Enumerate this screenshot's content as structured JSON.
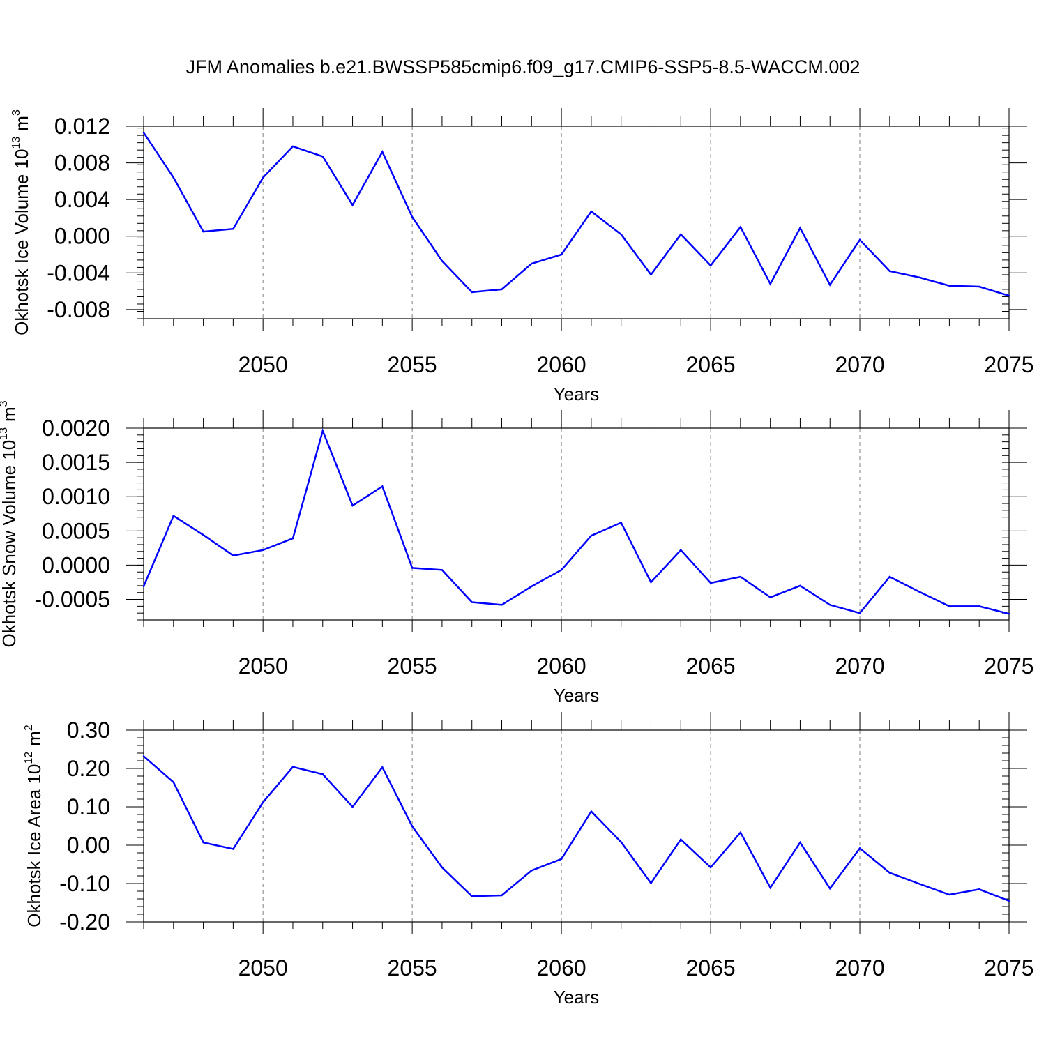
{
  "title": "JFM Anomalies b.e21.BWSSP585cmip6.f09_g17.CMIP6-SSP5-8.5-WACCM.002",
  "colors": {
    "line": "#0000ff",
    "axis": "#000000",
    "grid": "#808080"
  },
  "chart_data": [
    {
      "type": "line",
      "xlabel": "Years",
      "ylabel": "Okhotsk Ice Volume 10",
      "ylabel_exp": "13",
      "ylabel_unit": "m",
      "ylabel_unit_exp": "3",
      "xlim": [
        2046,
        2075
      ],
      "ylim": [
        -0.009,
        0.012
      ],
      "x_ticks": [
        "2050",
        "2055",
        "2060",
        "2065",
        "2070",
        "2075"
      ],
      "y_ticks": [
        "0.012",
        "0.008",
        "0.004",
        "0.000",
        "-0.004",
        "-0.008"
      ],
      "grid": "vertical dashed at labeled years",
      "x": [
        2046,
        2047,
        2048,
        2049,
        2050,
        2051,
        2052,
        2053,
        2054,
        2055,
        2056,
        2057,
        2058,
        2059,
        2060,
        2061,
        2062,
        2063,
        2064,
        2065,
        2066,
        2067,
        2068,
        2069,
        2070,
        2071,
        2072,
        2073,
        2074,
        2075
      ],
      "values": [
        0.0113,
        0.0064,
        0.0005,
        0.0008,
        0.0064,
        0.0098,
        0.0087,
        0.0034,
        0.0092,
        0.0021,
        -0.0027,
        -0.0061,
        -0.0058,
        -0.003,
        -0.002,
        0.0027,
        0.0002,
        -0.0042,
        0.0002,
        -0.0032,
        0.001,
        -0.0052,
        0.0009,
        -0.0053,
        -0.0004,
        -0.0038,
        -0.0045,
        -0.0054,
        -0.0055,
        -0.0065
      ]
    },
    {
      "type": "line",
      "xlabel": "Years",
      "ylabel": "Okhotsk Snow Volume 10",
      "ylabel_exp": "13",
      "ylabel_unit": "m",
      "ylabel_unit_exp": "3",
      "xlim": [
        2046,
        2075
      ],
      "ylim": [
        -0.0008,
        0.002
      ],
      "x_ticks": [
        "2050",
        "2055",
        "2060",
        "2065",
        "2070",
        "2075"
      ],
      "y_ticks": [
        "0.0020",
        "0.0015",
        "0.0010",
        "0.0005",
        "0.0000",
        "-0.0005"
      ],
      "grid": "vertical dashed at labeled years",
      "x": [
        2046,
        2047,
        2048,
        2049,
        2050,
        2051,
        2052,
        2053,
        2054,
        2055,
        2056,
        2057,
        2058,
        2059,
        2060,
        2061,
        2062,
        2063,
        2064,
        2065,
        2066,
        2067,
        2068,
        2069,
        2070,
        2071,
        2072,
        2073,
        2074,
        2075
      ],
      "values": [
        -0.00031,
        0.00072,
        0.00044,
        0.00014,
        0.00022,
        0.00039,
        0.00196,
        0.00087,
        0.00115,
        -4e-05,
        -7e-05,
        -0.00054,
        -0.00058,
        -0.00031,
        -7e-05,
        0.00043,
        0.00062,
        -0.00025,
        0.00022,
        -0.00026,
        -0.00017,
        -0.00047,
        -0.0003,
        -0.00058,
        -0.0007,
        -0.00017,
        -0.00039,
        -0.0006,
        -0.0006,
        -0.00071
      ]
    },
    {
      "type": "line",
      "xlabel": "Years",
      "ylabel": "Okhotsk Ice Area 10",
      "ylabel_exp": "12",
      "ylabel_unit": "m",
      "ylabel_unit_exp": "2",
      "xlim": [
        2046,
        2075
      ],
      "ylim": [
        -0.2,
        0.3
      ],
      "x_ticks": [
        "2050",
        "2055",
        "2060",
        "2065",
        "2070",
        "2075"
      ],
      "y_ticks": [
        "0.30",
        "0.20",
        "0.10",
        "0.00",
        "-0.10",
        "-0.20"
      ],
      "grid": "vertical dashed at labeled years",
      "x": [
        2046,
        2047,
        2048,
        2049,
        2050,
        2051,
        2052,
        2053,
        2054,
        2055,
        2056,
        2057,
        2058,
        2059,
        2060,
        2061,
        2062,
        2063,
        2064,
        2065,
        2066,
        2067,
        2068,
        2069,
        2070,
        2071,
        2072,
        2073,
        2074,
        2075
      ],
      "values": [
        0.232,
        0.164,
        0.007,
        -0.01,
        0.112,
        0.204,
        0.185,
        0.1,
        0.203,
        0.049,
        -0.058,
        -0.133,
        -0.131,
        -0.066,
        -0.036,
        0.088,
        0.008,
        -0.099,
        0.015,
        -0.058,
        0.033,
        -0.111,
        0.007,
        -0.113,
        -0.008,
        -0.072,
        -0.101,
        -0.129,
        -0.115,
        -0.145
      ]
    }
  ]
}
